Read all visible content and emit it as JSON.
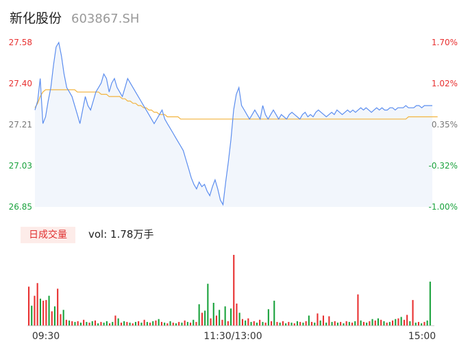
{
  "header": {
    "name": "新化股份",
    "code": "603867.SH"
  },
  "volume": {
    "badge": "日成交量",
    "text": "vol: 1.78万手"
  },
  "colors": {
    "up": "#e83030",
    "down": "#19a23c",
    "price": "#5b8def",
    "avg": "#f2b33d",
    "area": "#f2f6fc"
  },
  "chart_data": {
    "type": "line",
    "y_left_ticks": [
      "27.58",
      "27.40",
      "27.21",
      "27.03",
      "26.85"
    ],
    "y_right_ticks": [
      "1.70%",
      "1.02%",
      "0.35%",
      "-0.32%",
      "-1.00%"
    ],
    "x_ticks": [
      "09:30",
      "11:30/13:00",
      "15:00"
    ],
    "ylim": [
      26.85,
      27.58
    ],
    "series": [
      {
        "role": "price",
        "values": [
          27.28,
          27.32,
          27.42,
          27.22,
          27.25,
          27.32,
          27.38,
          27.48,
          27.56,
          27.58,
          27.52,
          27.44,
          27.38,
          27.36,
          27.34,
          27.3,
          27.26,
          27.22,
          27.28,
          27.34,
          27.3,
          27.28,
          27.32,
          27.36,
          27.38,
          27.4,
          27.44,
          27.42,
          27.36,
          27.4,
          27.42,
          27.38,
          27.36,
          27.34,
          27.38,
          27.42,
          27.4,
          27.38,
          27.36,
          27.34,
          27.32,
          27.3,
          27.28,
          27.26,
          27.24,
          27.22,
          27.24,
          27.26,
          27.28,
          27.24,
          27.22,
          27.2,
          27.18,
          27.16,
          27.14,
          27.12,
          27.1,
          27.06,
          27.02,
          26.98,
          26.95,
          26.93,
          26.96,
          26.94,
          26.95,
          26.92,
          26.9,
          26.94,
          26.97,
          26.93,
          26.88,
          26.86,
          26.96,
          27.05,
          27.15,
          27.28,
          27.35,
          27.38,
          27.3,
          27.28,
          27.26,
          27.24,
          27.26,
          27.28,
          27.26,
          27.24,
          27.3,
          27.26,
          27.24,
          27.26,
          27.28,
          27.26,
          27.24,
          27.26,
          27.25,
          27.24,
          27.26,
          27.27,
          27.26,
          27.25,
          27.24,
          27.26,
          27.27,
          27.25,
          27.26,
          27.25,
          27.27,
          27.28,
          27.27,
          27.26,
          27.25,
          27.26,
          27.27,
          27.26,
          27.28,
          27.27,
          27.26,
          27.27,
          27.28,
          27.27,
          27.28,
          27.27,
          27.28,
          27.29,
          27.28,
          27.29,
          27.28,
          27.27,
          27.28,
          27.29,
          27.28,
          27.29,
          27.28,
          27.28,
          27.29,
          27.29,
          27.28,
          27.29,
          27.29,
          27.29,
          27.3,
          27.29,
          27.29,
          27.29,
          27.3,
          27.3,
          27.29,
          27.3,
          27.3,
          27.3,
          27.3
        ]
      },
      {
        "role": "average",
        "values": [
          27.29,
          27.31,
          27.34,
          27.36,
          27.37,
          27.37,
          27.37,
          27.37,
          27.37,
          27.37,
          27.37,
          27.37,
          27.37,
          27.37,
          27.37,
          27.37,
          27.36,
          27.36,
          27.36,
          27.36,
          27.36,
          27.36,
          27.36,
          27.36,
          27.36,
          27.35,
          27.35,
          27.35,
          27.34,
          27.34,
          27.34,
          27.34,
          27.34,
          27.33,
          27.33,
          27.32,
          27.32,
          27.31,
          27.31,
          27.3,
          27.3,
          27.29,
          27.29,
          27.28,
          27.28,
          27.27,
          27.27,
          27.26,
          27.26,
          27.26,
          27.25,
          27.25,
          27.25,
          27.25,
          27.25,
          27.24,
          27.24,
          27.24,
          27.24,
          27.24,
          27.24,
          27.24,
          27.24,
          27.24,
          27.24,
          27.24,
          27.24,
          27.24,
          27.24,
          27.24,
          27.24,
          27.24,
          27.24,
          27.24,
          27.24,
          27.24,
          27.24,
          27.24,
          27.24,
          27.24,
          27.24,
          27.24,
          27.24,
          27.24,
          27.24,
          27.24,
          27.24,
          27.24,
          27.24,
          27.24,
          27.24,
          27.24,
          27.24,
          27.24,
          27.24,
          27.24,
          27.24,
          27.24,
          27.24,
          27.24,
          27.24,
          27.24,
          27.24,
          27.24,
          27.24,
          27.24,
          27.24,
          27.24,
          27.24,
          27.24,
          27.24,
          27.24,
          27.24,
          27.24,
          27.24,
          27.24,
          27.24,
          27.24,
          27.24,
          27.24,
          27.24,
          27.24,
          27.24,
          27.24,
          27.24,
          27.24,
          27.24,
          27.24,
          27.24,
          27.24,
          27.24,
          27.24,
          27.24,
          27.24,
          27.24,
          27.24,
          27.24,
          27.24,
          27.24,
          27.24,
          27.24,
          27.25,
          27.25,
          27.25,
          27.25,
          27.25,
          27.25,
          27.25,
          27.25,
          27.25,
          27.25,
          27.25,
          27.25
        ]
      }
    ],
    "volume_bars": [
      {
        "v": 0.55,
        "d": "up"
      },
      {
        "v": 0.28,
        "d": "down"
      },
      {
        "v": 0.42,
        "d": "up"
      },
      {
        "v": 0.6,
        "d": "up"
      },
      {
        "v": 0.38,
        "d": "down"
      },
      {
        "v": 0.35,
        "d": "up"
      },
      {
        "v": 0.36,
        "d": "up"
      },
      {
        "v": 0.42,
        "d": "down"
      },
      {
        "v": 0.2,
        "d": "up"
      },
      {
        "v": 0.27,
        "d": "down"
      },
      {
        "v": 0.52,
        "d": "up"
      },
      {
        "v": 0.16,
        "d": "up"
      },
      {
        "v": 0.22,
        "d": "down"
      },
      {
        "v": 0.08,
        "d": "up"
      },
      {
        "v": 0.07,
        "d": "down"
      },
      {
        "v": 0.06,
        "d": "up"
      },
      {
        "v": 0.05,
        "d": "down"
      },
      {
        "v": 0.06,
        "d": "up"
      },
      {
        "v": 0.04,
        "d": "down"
      },
      {
        "v": 0.08,
        "d": "up"
      },
      {
        "v": 0.05,
        "d": "down"
      },
      {
        "v": 0.04,
        "d": "up"
      },
      {
        "v": 0.06,
        "d": "down"
      },
      {
        "v": 0.07,
        "d": "up"
      },
      {
        "v": 0.03,
        "d": "down"
      },
      {
        "v": 0.05,
        "d": "up"
      },
      {
        "v": 0.04,
        "d": "down"
      },
      {
        "v": 0.06,
        "d": "down"
      },
      {
        "v": 0.03,
        "d": "up"
      },
      {
        "v": 0.05,
        "d": "down"
      },
      {
        "v": 0.14,
        "d": "up"
      },
      {
        "v": 0.1,
        "d": "down"
      },
      {
        "v": 0.04,
        "d": "up"
      },
      {
        "v": 0.06,
        "d": "down"
      },
      {
        "v": 0.05,
        "d": "up"
      },
      {
        "v": 0.04,
        "d": "down"
      },
      {
        "v": 0.03,
        "d": "up"
      },
      {
        "v": 0.05,
        "d": "down"
      },
      {
        "v": 0.06,
        "d": "up"
      },
      {
        "v": 0.04,
        "d": "down"
      },
      {
        "v": 0.08,
        "d": "up"
      },
      {
        "v": 0.05,
        "d": "down"
      },
      {
        "v": 0.04,
        "d": "up"
      },
      {
        "v": 0.06,
        "d": "down"
      },
      {
        "v": 0.07,
        "d": "up"
      },
      {
        "v": 0.09,
        "d": "down"
      },
      {
        "v": 0.05,
        "d": "up"
      },
      {
        "v": 0.04,
        "d": "down"
      },
      {
        "v": 0.03,
        "d": "up"
      },
      {
        "v": 0.06,
        "d": "down"
      },
      {
        "v": 0.04,
        "d": "up"
      },
      {
        "v": 0.03,
        "d": "down"
      },
      {
        "v": 0.05,
        "d": "up"
      },
      {
        "v": 0.04,
        "d": "down"
      },
      {
        "v": 0.07,
        "d": "up"
      },
      {
        "v": 0.05,
        "d": "down"
      },
      {
        "v": 0.04,
        "d": "up"
      },
      {
        "v": 0.08,
        "d": "down"
      },
      {
        "v": 0.05,
        "d": "up"
      },
      {
        "v": 0.3,
        "d": "down"
      },
      {
        "v": 0.18,
        "d": "up"
      },
      {
        "v": 0.21,
        "d": "down"
      },
      {
        "v": 0.59,
        "d": "down"
      },
      {
        "v": 0.1,
        "d": "up"
      },
      {
        "v": 0.32,
        "d": "down"
      },
      {
        "v": 0.14,
        "d": "up"
      },
      {
        "v": 0.22,
        "d": "down"
      },
      {
        "v": 0.08,
        "d": "up"
      },
      {
        "v": 0.27,
        "d": "down"
      },
      {
        "v": 0.06,
        "d": "up"
      },
      {
        "v": 0.24,
        "d": "down"
      },
      {
        "v": 1.0,
        "d": "up"
      },
      {
        "v": 0.31,
        "d": "up"
      },
      {
        "v": 0.18,
        "d": "down"
      },
      {
        "v": 0.09,
        "d": "up"
      },
      {
        "v": 0.07,
        "d": "down"
      },
      {
        "v": 0.1,
        "d": "up"
      },
      {
        "v": 0.05,
        "d": "down"
      },
      {
        "v": 0.06,
        "d": "up"
      },
      {
        "v": 0.04,
        "d": "down"
      },
      {
        "v": 0.08,
        "d": "up"
      },
      {
        "v": 0.05,
        "d": "down"
      },
      {
        "v": 0.04,
        "d": "up"
      },
      {
        "v": 0.23,
        "d": "down"
      },
      {
        "v": 0.06,
        "d": "up"
      },
      {
        "v": 0.35,
        "d": "down"
      },
      {
        "v": 0.05,
        "d": "up"
      },
      {
        "v": 0.04,
        "d": "down"
      },
      {
        "v": 0.06,
        "d": "up"
      },
      {
        "v": 0.03,
        "d": "down"
      },
      {
        "v": 0.05,
        "d": "up"
      },
      {
        "v": 0.04,
        "d": "down"
      },
      {
        "v": 0.03,
        "d": "up"
      },
      {
        "v": 0.06,
        "d": "down"
      },
      {
        "v": 0.05,
        "d": "up"
      },
      {
        "v": 0.04,
        "d": "down"
      },
      {
        "v": 0.06,
        "d": "up"
      },
      {
        "v": 0.14,
        "d": "down"
      },
      {
        "v": 0.05,
        "d": "up"
      },
      {
        "v": 0.04,
        "d": "down"
      },
      {
        "v": 0.17,
        "d": "up"
      },
      {
        "v": 0.07,
        "d": "down"
      },
      {
        "v": 0.14,
        "d": "up"
      },
      {
        "v": 0.04,
        "d": "down"
      },
      {
        "v": 0.13,
        "d": "up"
      },
      {
        "v": 0.05,
        "d": "down"
      },
      {
        "v": 0.06,
        "d": "up"
      },
      {
        "v": 0.04,
        "d": "down"
      },
      {
        "v": 0.05,
        "d": "up"
      },
      {
        "v": 0.03,
        "d": "down"
      },
      {
        "v": 0.06,
        "d": "up"
      },
      {
        "v": 0.05,
        "d": "down"
      },
      {
        "v": 0.04,
        "d": "up"
      },
      {
        "v": 0.06,
        "d": "down"
      },
      {
        "v": 0.44,
        "d": "up"
      },
      {
        "v": 0.07,
        "d": "down"
      },
      {
        "v": 0.05,
        "d": "up"
      },
      {
        "v": 0.04,
        "d": "down"
      },
      {
        "v": 0.06,
        "d": "up"
      },
      {
        "v": 0.09,
        "d": "down"
      },
      {
        "v": 0.07,
        "d": "up"
      },
      {
        "v": 0.1,
        "d": "down"
      },
      {
        "v": 0.08,
        "d": "up"
      },
      {
        "v": 0.06,
        "d": "down"
      },
      {
        "v": 0.04,
        "d": "up"
      },
      {
        "v": 0.05,
        "d": "down"
      },
      {
        "v": 0.07,
        "d": "up"
      },
      {
        "v": 0.09,
        "d": "down"
      },
      {
        "v": 0.1,
        "d": "up"
      },
      {
        "v": 0.12,
        "d": "down"
      },
      {
        "v": 0.08,
        "d": "up"
      },
      {
        "v": 0.15,
        "d": "up"
      },
      {
        "v": 0.06,
        "d": "down"
      },
      {
        "v": 0.36,
        "d": "up"
      },
      {
        "v": 0.04,
        "d": "down"
      },
      {
        "v": 0.05,
        "d": "up"
      },
      {
        "v": 0.03,
        "d": "down"
      },
      {
        "v": 0.05,
        "d": "up"
      },
      {
        "v": 0.07,
        "d": "down"
      },
      {
        "v": 0.62,
        "d": "down"
      }
    ]
  }
}
